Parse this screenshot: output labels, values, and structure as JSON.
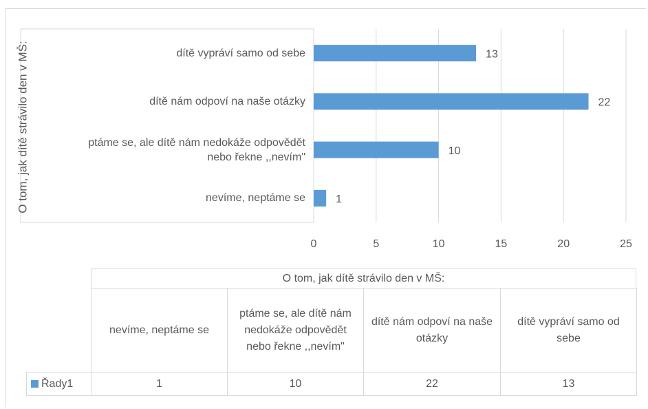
{
  "chart_data": {
    "type": "barh",
    "y_label": "O tom, jak dítě strávilo den v MŠ:",
    "categories": [
      "nevíme, neptáme se",
      "ptáme se, ale dítě nám nedokáže odpovědět nebo řekne ,,nevím\"",
      "dítě nám odpoví na naše otázky",
      "dítě vypráví samo od sebe"
    ],
    "series": [
      {
        "name": "Řady1",
        "color": "#5b9bd5",
        "values": [
          1,
          10,
          22,
          13
        ]
      }
    ],
    "xlim": [
      0,
      25
    ],
    "xticks": [
      0,
      5,
      10,
      15,
      20,
      25
    ],
    "grid": true,
    "data_table": true
  }
}
